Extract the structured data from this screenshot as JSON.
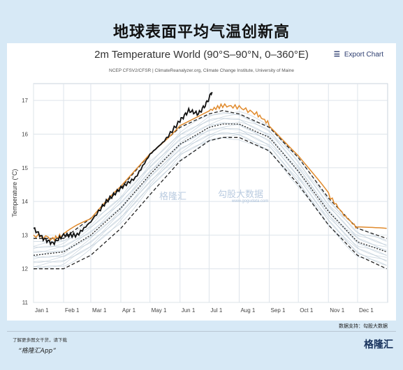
{
  "headline": "地球表面平均气温创新高",
  "chart_data": {
    "type": "line",
    "title": "2m Temperature World (90°S–90°N, 0–360°E)",
    "subtitle": "NCEP CFSV2/CFSR | ClimateReanalyzer.org, Climate Change Institute, University of Maine",
    "ylabel": "Temperature (°C)",
    "xlabel": "",
    "ylim": [
      11,
      17.5
    ],
    "yticks": [
      "11",
      "12",
      "13",
      "14",
      "15",
      "16",
      "17"
    ],
    "x_tick_labels": [
      "Jan 1",
      "Feb 1",
      "Mar 1",
      "Apr 1",
      "May 1",
      "Jun 1",
      "Jul 1",
      "Aug 1",
      "Sep 1",
      "Oct 1",
      "Nov 1",
      "Dec 1"
    ],
    "x_tick_days": [
      0,
      31,
      59,
      90,
      120,
      151,
      181,
      212,
      243,
      273,
      304,
      334
    ],
    "grid": true,
    "series": [
      {
        "role": "mean",
        "style": "dotted",
        "color": "#222222",
        "x": [
          0,
          31,
          59,
          90,
          120,
          151,
          181,
          195,
          212,
          243,
          273,
          304,
          334,
          364
        ],
        "y": [
          12.4,
          12.5,
          13.0,
          13.8,
          14.8,
          15.7,
          16.2,
          16.3,
          16.3,
          15.9,
          14.9,
          13.7,
          12.8,
          12.5
        ]
      },
      {
        "role": "upper-bound",
        "style": "dashed",
        "color": "#222222",
        "x": [
          0,
          31,
          59,
          90,
          120,
          151,
          181,
          195,
          212,
          243,
          273,
          304,
          334,
          364
        ],
        "y": [
          12.9,
          12.9,
          13.5,
          14.4,
          15.4,
          16.2,
          16.6,
          16.7,
          16.6,
          16.2,
          15.3,
          14.1,
          13.2,
          12.9
        ]
      },
      {
        "role": "lower-bound",
        "style": "dashed",
        "color": "#222222",
        "x": [
          0,
          31,
          59,
          90,
          120,
          151,
          181,
          195,
          212,
          243,
          273,
          304,
          334,
          364
        ],
        "y": [
          12.0,
          12.0,
          12.4,
          13.2,
          14.2,
          15.2,
          15.8,
          15.9,
          15.9,
          15.5,
          14.5,
          13.3,
          12.4,
          12.0
        ]
      },
      {
        "role": "previous-year",
        "style": "solid",
        "color": "#e08a2c",
        "x": [
          0,
          20,
          31,
          59,
          90,
          120,
          151,
          181,
          195,
          212,
          230,
          243,
          273,
          304,
          320,
          334,
          364
        ],
        "y": [
          13.0,
          12.9,
          13.0,
          13.5,
          14.4,
          15.4,
          16.3,
          16.7,
          16.85,
          16.8,
          16.6,
          16.3,
          15.4,
          14.2,
          13.6,
          13.2,
          13.2
        ]
      },
      {
        "role": "current-year",
        "style": "solid",
        "color": "#111111",
        "x": [
          0,
          10,
          20,
          31,
          45,
          59,
          75,
          90,
          105,
          120,
          135,
          151,
          160,
          170,
          178,
          184
        ],
        "y": [
          13.2,
          12.9,
          12.75,
          13.0,
          13.0,
          13.4,
          14.0,
          14.4,
          14.7,
          15.4,
          15.8,
          16.4,
          16.7,
          16.6,
          16.9,
          17.25
        ]
      }
    ]
  },
  "export_label": "Export Chart",
  "watermark": {
    "brand": "格隆汇",
    "brand2": "勾股大数据",
    "domain": "www.gogudata.com"
  },
  "footer": {
    "source_credit": "数据支持：勾股大数据",
    "app_note": "了解更多图文干货，请下载",
    "app_name": "“格隆汇App”",
    "logo_text": "格隆汇"
  }
}
